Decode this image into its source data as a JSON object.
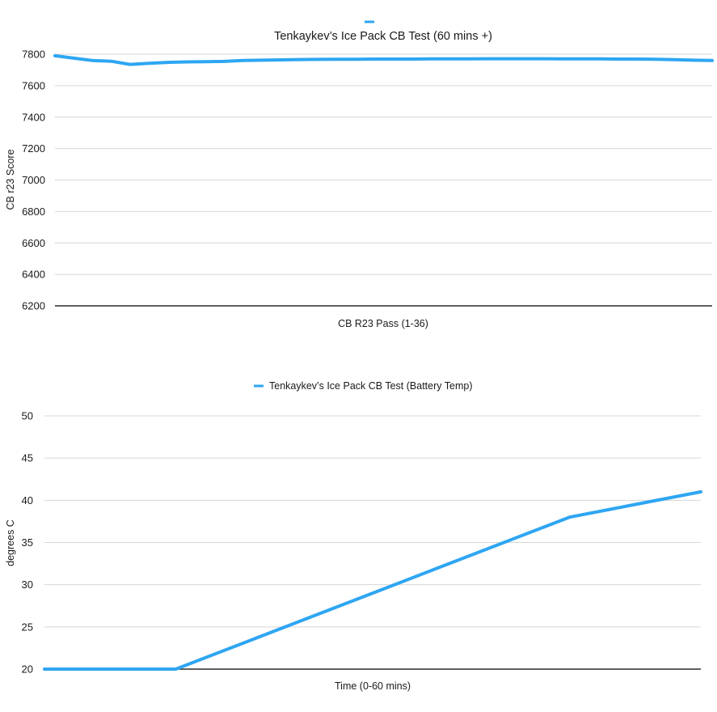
{
  "chart_data": [
    {
      "type": "line",
      "title": "Tenkaykev’s Ice Pack CB Test (60 mins +)",
      "legend": {
        "entries": [
          ""
        ],
        "placement": "top-center"
      },
      "xlabel": "CB R23 Pass (1-36)",
      "ylabel": "CB r23 Score",
      "ylim": [
        6200,
        7800
      ],
      "yticks": [
        "6200",
        "6400",
        "6600",
        "6800",
        "7000",
        "7200",
        "7400",
        "7600",
        "7800"
      ],
      "grid": true,
      "series_color": "#2ea6f2",
      "series": [
        {
          "values": [
            7790,
            7775,
            7760,
            7755,
            7735,
            7742,
            7748,
            7751,
            7752,
            7754,
            7760,
            7762,
            7764,
            7766,
            7767,
            7768,
            7768,
            7769,
            7769,
            7769,
            7770,
            7770,
            7770,
            7771,
            7771,
            7771,
            7771,
            7770,
            7770,
            7770,
            7769,
            7769,
            7768,
            7765,
            7762,
            7760
          ]
        }
      ]
    },
    {
      "type": "line",
      "title": "",
      "legend": {
        "entries": [
          "Tenkaykev’s Ice Pack CB Test (Battery Temp)"
        ],
        "placement": "top-center"
      },
      "xlabel": "Time (0-60 mins)",
      "ylabel": "degrees C",
      "ylim": [
        20,
        50
      ],
      "yticks": [
        "20",
        "25",
        "30",
        "35",
        "40",
        "45",
        "50"
      ],
      "grid": true,
      "series_color": "#2ea6f2",
      "series": [
        {
          "name": "Tenkaykev’s Ice Pack CB Test (Battery Temp)",
          "values": [
            20,
            20,
            20,
            23,
            26,
            29,
            32,
            35,
            38,
            39.5,
            41
          ]
        }
      ]
    }
  ]
}
